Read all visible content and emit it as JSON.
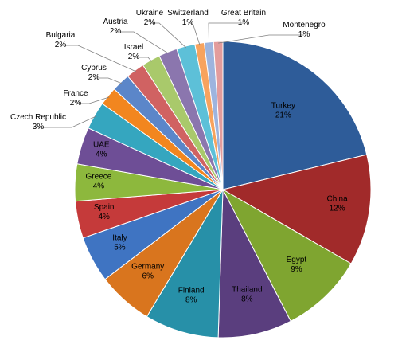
{
  "chart_data": {
    "type": "pie",
    "title": "",
    "slices": [
      {
        "label": "Turkey",
        "value": 21,
        "pct_label": "21%",
        "color": "#2E5C99"
      },
      {
        "label": "China",
        "value": 12,
        "pct_label": "12%",
        "color": "#A12A2A"
      },
      {
        "label": "Egypt",
        "value": 9,
        "pct_label": "9%",
        "color": "#7FA530"
      },
      {
        "label": "Thailand",
        "value": 8,
        "pct_label": "8%",
        "color": "#5A3E7E"
      },
      {
        "label": "Finland",
        "value": 8,
        "pct_label": "8%",
        "color": "#2790A8"
      },
      {
        "label": "Germany",
        "value": 6,
        "pct_label": "6%",
        "color": "#D9751E"
      },
      {
        "label": "Italy",
        "value": 5,
        "pct_label": "5%",
        "color": "#3F74C2"
      },
      {
        "label": "Spain",
        "value": 4,
        "pct_label": "4%",
        "color": "#C53A3A"
      },
      {
        "label": "Greece",
        "value": 4,
        "pct_label": "4%",
        "color": "#8DB83D"
      },
      {
        "label": "UAE",
        "value": 4,
        "pct_label": "4%",
        "color": "#6E4E96"
      },
      {
        "label": "Czech Republic",
        "value": 3,
        "pct_label": "3%",
        "color": "#35A6BF"
      },
      {
        "label": "France",
        "value": 2,
        "pct_label": "2%",
        "color": "#F2861F"
      },
      {
        "label": "Cyprus",
        "value": 2,
        "pct_label": "2%",
        "color": "#5B86C9"
      },
      {
        "label": "Bulgaria",
        "value": 2,
        "pct_label": "2%",
        "color": "#D06262"
      },
      {
        "label": "Israel",
        "value": 2,
        "pct_label": "2%",
        "color": "#A9C96B"
      },
      {
        "label": "Austria",
        "value": 2,
        "pct_label": "2%",
        "color": "#8B76AE"
      },
      {
        "label": "Ukraine",
        "value": 2,
        "pct_label": "2%",
        "color": "#5DC0D8"
      },
      {
        "label": "Switzerland",
        "value": 1,
        "pct_label": "1%",
        "color": "#F7A35E"
      },
      {
        "label": "Great Britain",
        "value": 1,
        "pct_label": "1%",
        "color": "#9DB4DE"
      },
      {
        "label": "Montenegro",
        "value": 1,
        "pct_label": "1%",
        "color": "#E39C9C"
      }
    ],
    "legend": "none",
    "label_style": "category name and percentage on slices; small slices labeled outside with leader lines"
  }
}
